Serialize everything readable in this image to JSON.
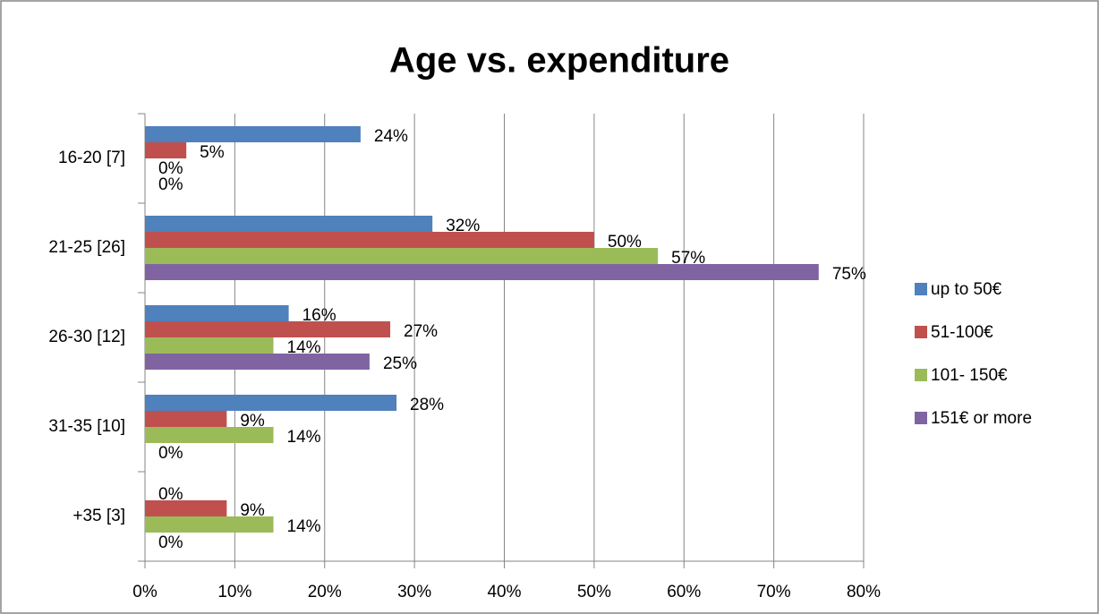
{
  "chart_data": {
    "type": "bar",
    "orientation": "horizontal",
    "title": "Age vs. expenditure",
    "categories": [
      "16-20 [7]",
      "21-25 [26]",
      "26-30 [12]",
      "31-35 [10]",
      "+35 [3]"
    ],
    "series": [
      {
        "name": "up to 50€",
        "color": "#4f81bd",
        "values": [
          24,
          32,
          16,
          28,
          0
        ],
        "value_labels": [
          "24%",
          "32%",
          "16%",
          "28%",
          "0%"
        ]
      },
      {
        "name": "51-100€",
        "color": "#c0504d",
        "values": [
          4.6,
          50,
          27.3,
          9.1,
          9.1
        ],
        "value_labels": [
          "5%",
          "50%",
          "27%",
          "9%",
          "9%"
        ]
      },
      {
        "name": "101- 150€",
        "color": "#9bbb59",
        "values": [
          0,
          57.1,
          14.3,
          14.3,
          14.3
        ],
        "value_labels": [
          "0%",
          "57%",
          "14%",
          "14%",
          "14%"
        ]
      },
      {
        "name": "151€ or more",
        "color": "#8064a2",
        "values": [
          0,
          75,
          25,
          0,
          0
        ],
        "value_labels": [
          "0%",
          "75%",
          "25%",
          "0%",
          "0%"
        ]
      }
    ],
    "xlim": [
      0,
      80
    ],
    "xticks": [
      {
        "value": 0,
        "label": "0%"
      },
      {
        "value": 10,
        "label": "10%"
      },
      {
        "value": 20,
        "label": "20%"
      },
      {
        "value": 30,
        "label": "30%"
      },
      {
        "value": 40,
        "label": "40%"
      },
      {
        "value": 50,
        "label": "50%"
      },
      {
        "value": 60,
        "label": "60%"
      },
      {
        "value": 70,
        "label": "70%"
      },
      {
        "value": 80,
        "label": "80%"
      }
    ],
    "grid": true,
    "legend": "right"
  }
}
